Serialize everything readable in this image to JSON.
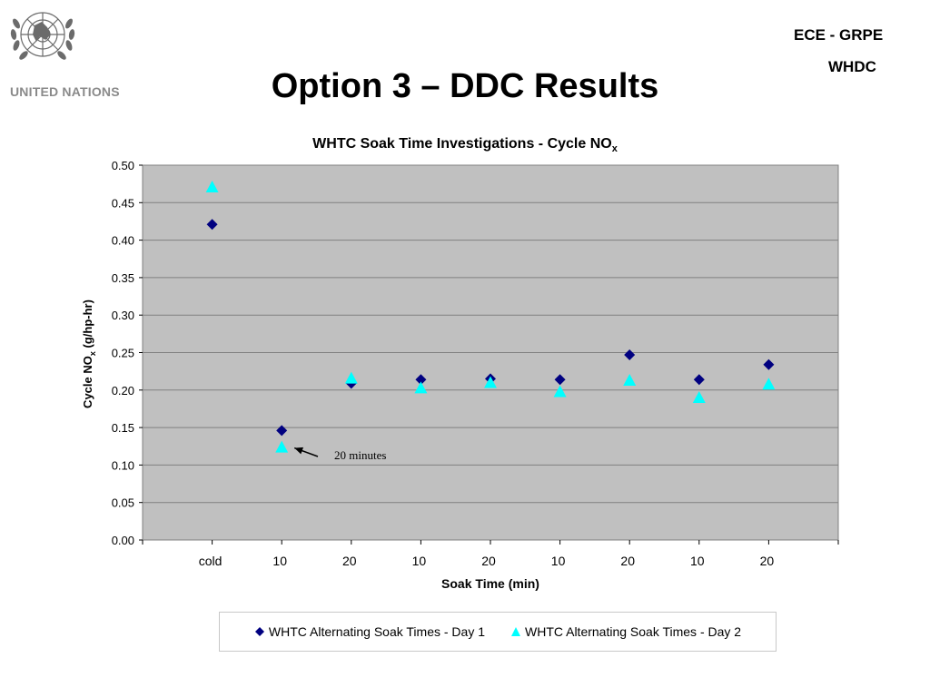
{
  "header": {
    "org_name": "UNITED NATIONS",
    "right_line1": "ECE - GRPE",
    "right_line2": "WHDC",
    "slide_title": "Option 3 – DDC Results"
  },
  "colors": {
    "plot_bg": "#c0c0c0",
    "gridline": "#808080",
    "series_day1": "#000080",
    "series_day2": "#00ffff",
    "logo": "#6b6b6b"
  },
  "chart_data": {
    "type": "scatter",
    "title_main": "WHTC Soak Time Investigations - Cycle NO",
    "title_sub": "x",
    "ylabel_main": "Cycle NO",
    "ylabel_sub": "x",
    "ylabel_tail": " (g/hp-hr)",
    "xlabel": "Soak Time (min)",
    "categories": [
      "cold",
      "10",
      "20",
      "10",
      "20",
      "10",
      "20",
      "10",
      "20"
    ],
    "ylim": [
      0,
      0.5
    ],
    "yticks": [
      "0.00",
      "0.05",
      "0.10",
      "0.15",
      "0.20",
      "0.25",
      "0.30",
      "0.35",
      "0.40",
      "0.45",
      "0.50"
    ],
    "grid": true,
    "legend_position": "bottom",
    "series": [
      {
        "name": "WHTC Alternating Soak Times - Day 1",
        "marker": "diamond",
        "values": [
          0.421,
          0.146,
          0.209,
          0.214,
          0.215,
          0.214,
          0.247,
          0.214,
          0.234
        ]
      },
      {
        "name": "WHTC Alternating Soak Times - Day 2",
        "marker": "triangle",
        "values": [
          0.471,
          0.124,
          0.216,
          0.203,
          0.21,
          0.198,
          0.213,
          0.19,
          0.208
        ]
      }
    ],
    "annotation": "20 minutes"
  }
}
